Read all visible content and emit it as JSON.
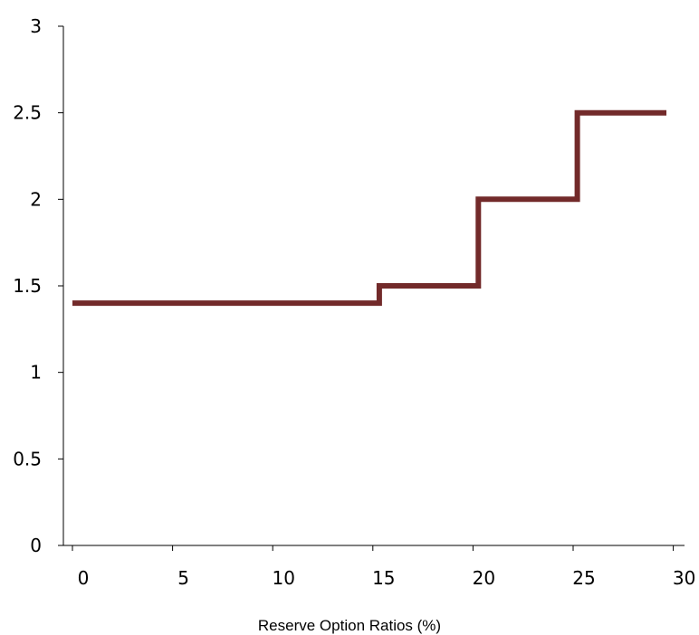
{
  "chart_data": {
    "type": "line",
    "title": "",
    "xlabel": "Reserve Option Ratios (%)",
    "ylabel": "",
    "xlim": [
      0,
      30
    ],
    "ylim": [
      0,
      3
    ],
    "x_ticks": [
      "0",
      "5",
      "10",
      "15",
      "20",
      "25",
      "30"
    ],
    "y_ticks": [
      "0",
      "0.5",
      "1",
      "1.5",
      "2",
      "2.5",
      "3"
    ],
    "grid": false,
    "legend": "none",
    "series": [
      {
        "color": "#722a2a",
        "step": true,
        "x": [
          0,
          15.5,
          15.5,
          20.5,
          20.5,
          25.5,
          25.5,
          30
        ],
        "y": [
          1.4,
          1.4,
          1.5,
          1.5,
          2.0,
          2.0,
          2.5,
          2.5
        ]
      }
    ]
  }
}
